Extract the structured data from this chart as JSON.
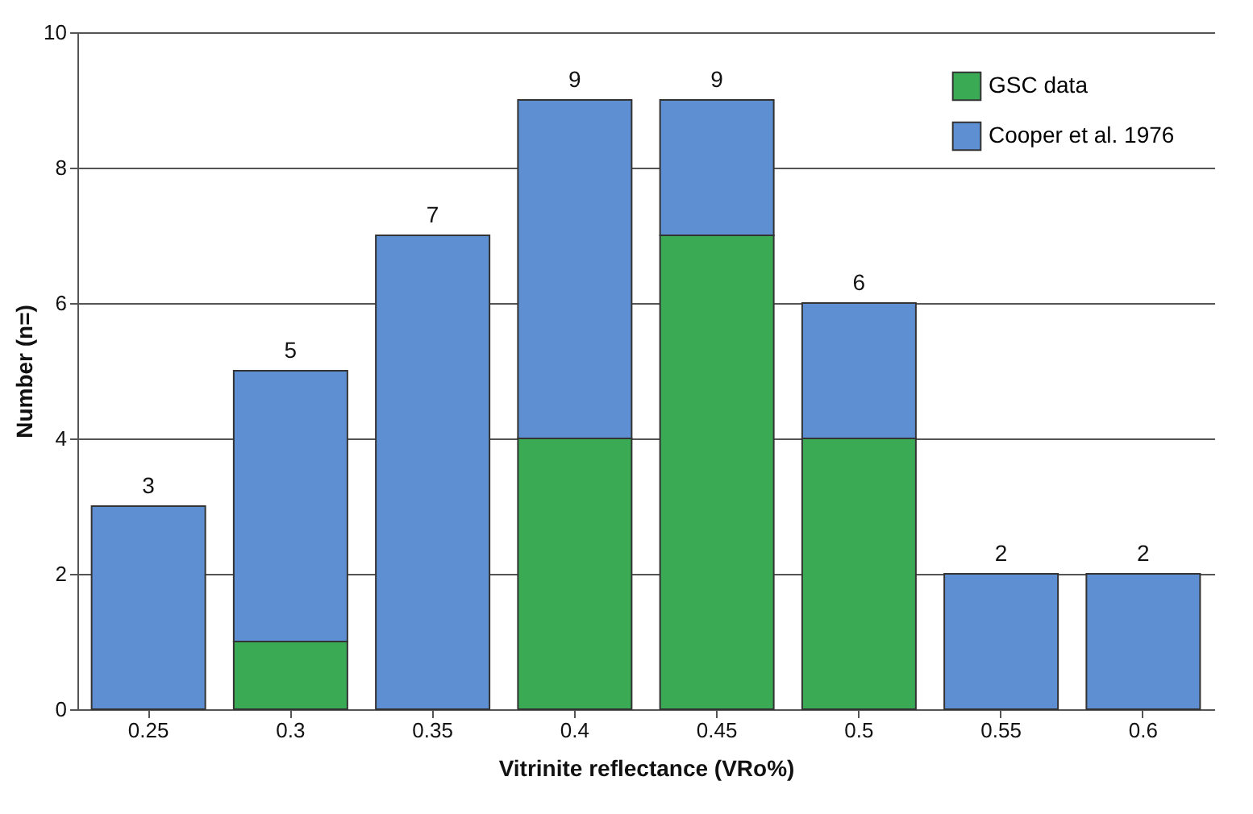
{
  "chart_data": {
    "type": "bar",
    "xlabel": "Vitrinite reflectance (VRo%)",
    "ylabel": "Number (n=)",
    "categories": [
      "0.25",
      "0.3",
      "0.35",
      "0.4",
      "0.45",
      "0.5",
      "0.55",
      "0.6"
    ],
    "series": [
      {
        "name": "GSC data",
        "color": "#3aaa55",
        "values": [
          0,
          1,
          0,
          4,
          7,
          4,
          0,
          0
        ]
      },
      {
        "name": "Cooper et al. 1976",
        "color": "#5f8fd3",
        "values": [
          3,
          4,
          7,
          5,
          2,
          2,
          2,
          2
        ]
      }
    ],
    "stacked": true,
    "totals": [
      "3",
      "5",
      "7",
      "9",
      "9",
      "6",
      "2",
      "2"
    ],
    "ylim": [
      0,
      10
    ],
    "yticks": [
      0,
      2,
      4,
      6,
      8,
      10
    ],
    "grid": "y",
    "legend": "top right"
  }
}
